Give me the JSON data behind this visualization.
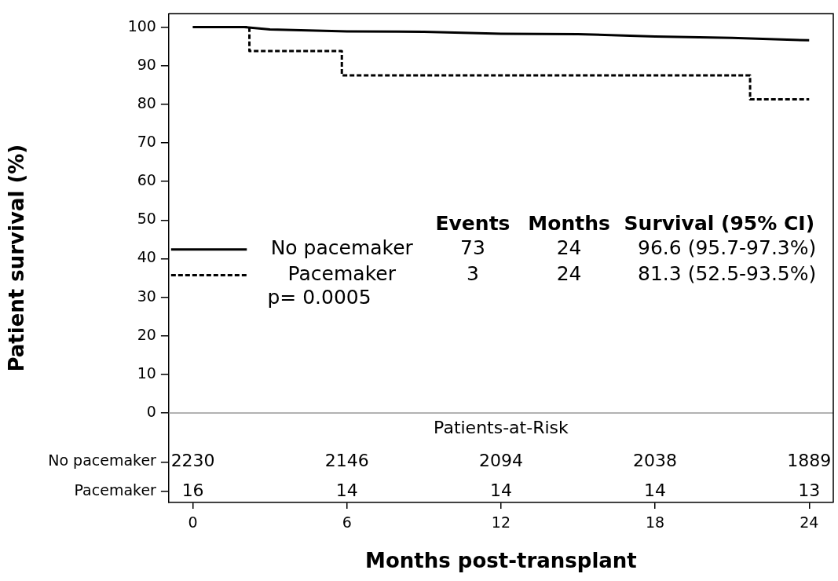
{
  "chart_data": {
    "type": "line",
    "xlabel": "Months post-transplant",
    "ylabel": "Patient survival (%)",
    "xlim": [
      -0.94,
      24.94
    ],
    "xticks": [
      0,
      6,
      12,
      18,
      24
    ],
    "ylim": [
      -23.2,
      103.5
    ],
    "yticks": [
      0,
      10,
      20,
      30,
      40,
      50,
      60,
      70,
      80,
      90,
      100,
      {
        "value": -12.7,
        "label": "No pacemaker"
      },
      {
        "value": -20.4,
        "label": "Pacemaker"
      }
    ],
    "grid": false,
    "legend": "left",
    "marker": "none",
    "series": [
      {
        "name": "No pacemaker",
        "color": "#000000",
        "line_style": "solid",
        "x": [
          0,
          2,
          3,
          6,
          9,
          12,
          15,
          18,
          21,
          24
        ],
        "values": [
          100,
          100,
          99.4,
          98.9,
          98.8,
          98.3,
          98.2,
          97.6,
          97.2,
          96.6
        ]
      },
      {
        "name": "Pacemaker",
        "type": "step",
        "color": "#000000",
        "line_style": "dashed",
        "x": [
          0,
          2.2,
          5.8,
          21.7,
          24
        ],
        "values": [
          100,
          93.8,
          87.5,
          81.3,
          81.3
        ]
      }
    ],
    "ref_lines": [
      {
        "axis": "y",
        "value": 0,
        "color": "#999999"
      }
    ],
    "annotations": [
      "Events",
      "Months",
      "Survival (95% CI)",
      "73",
      "24",
      "96.6 (95.7-97.3%)",
      "3",
      "24",
      "81.3 (52.5-93.5%)",
      "p= 0.0005",
      "Patients-at-Risk",
      "2230",
      "2146",
      "2094",
      "2038",
      "1889",
      "16",
      "14",
      "14",
      "14",
      "13"
    ]
  }
}
